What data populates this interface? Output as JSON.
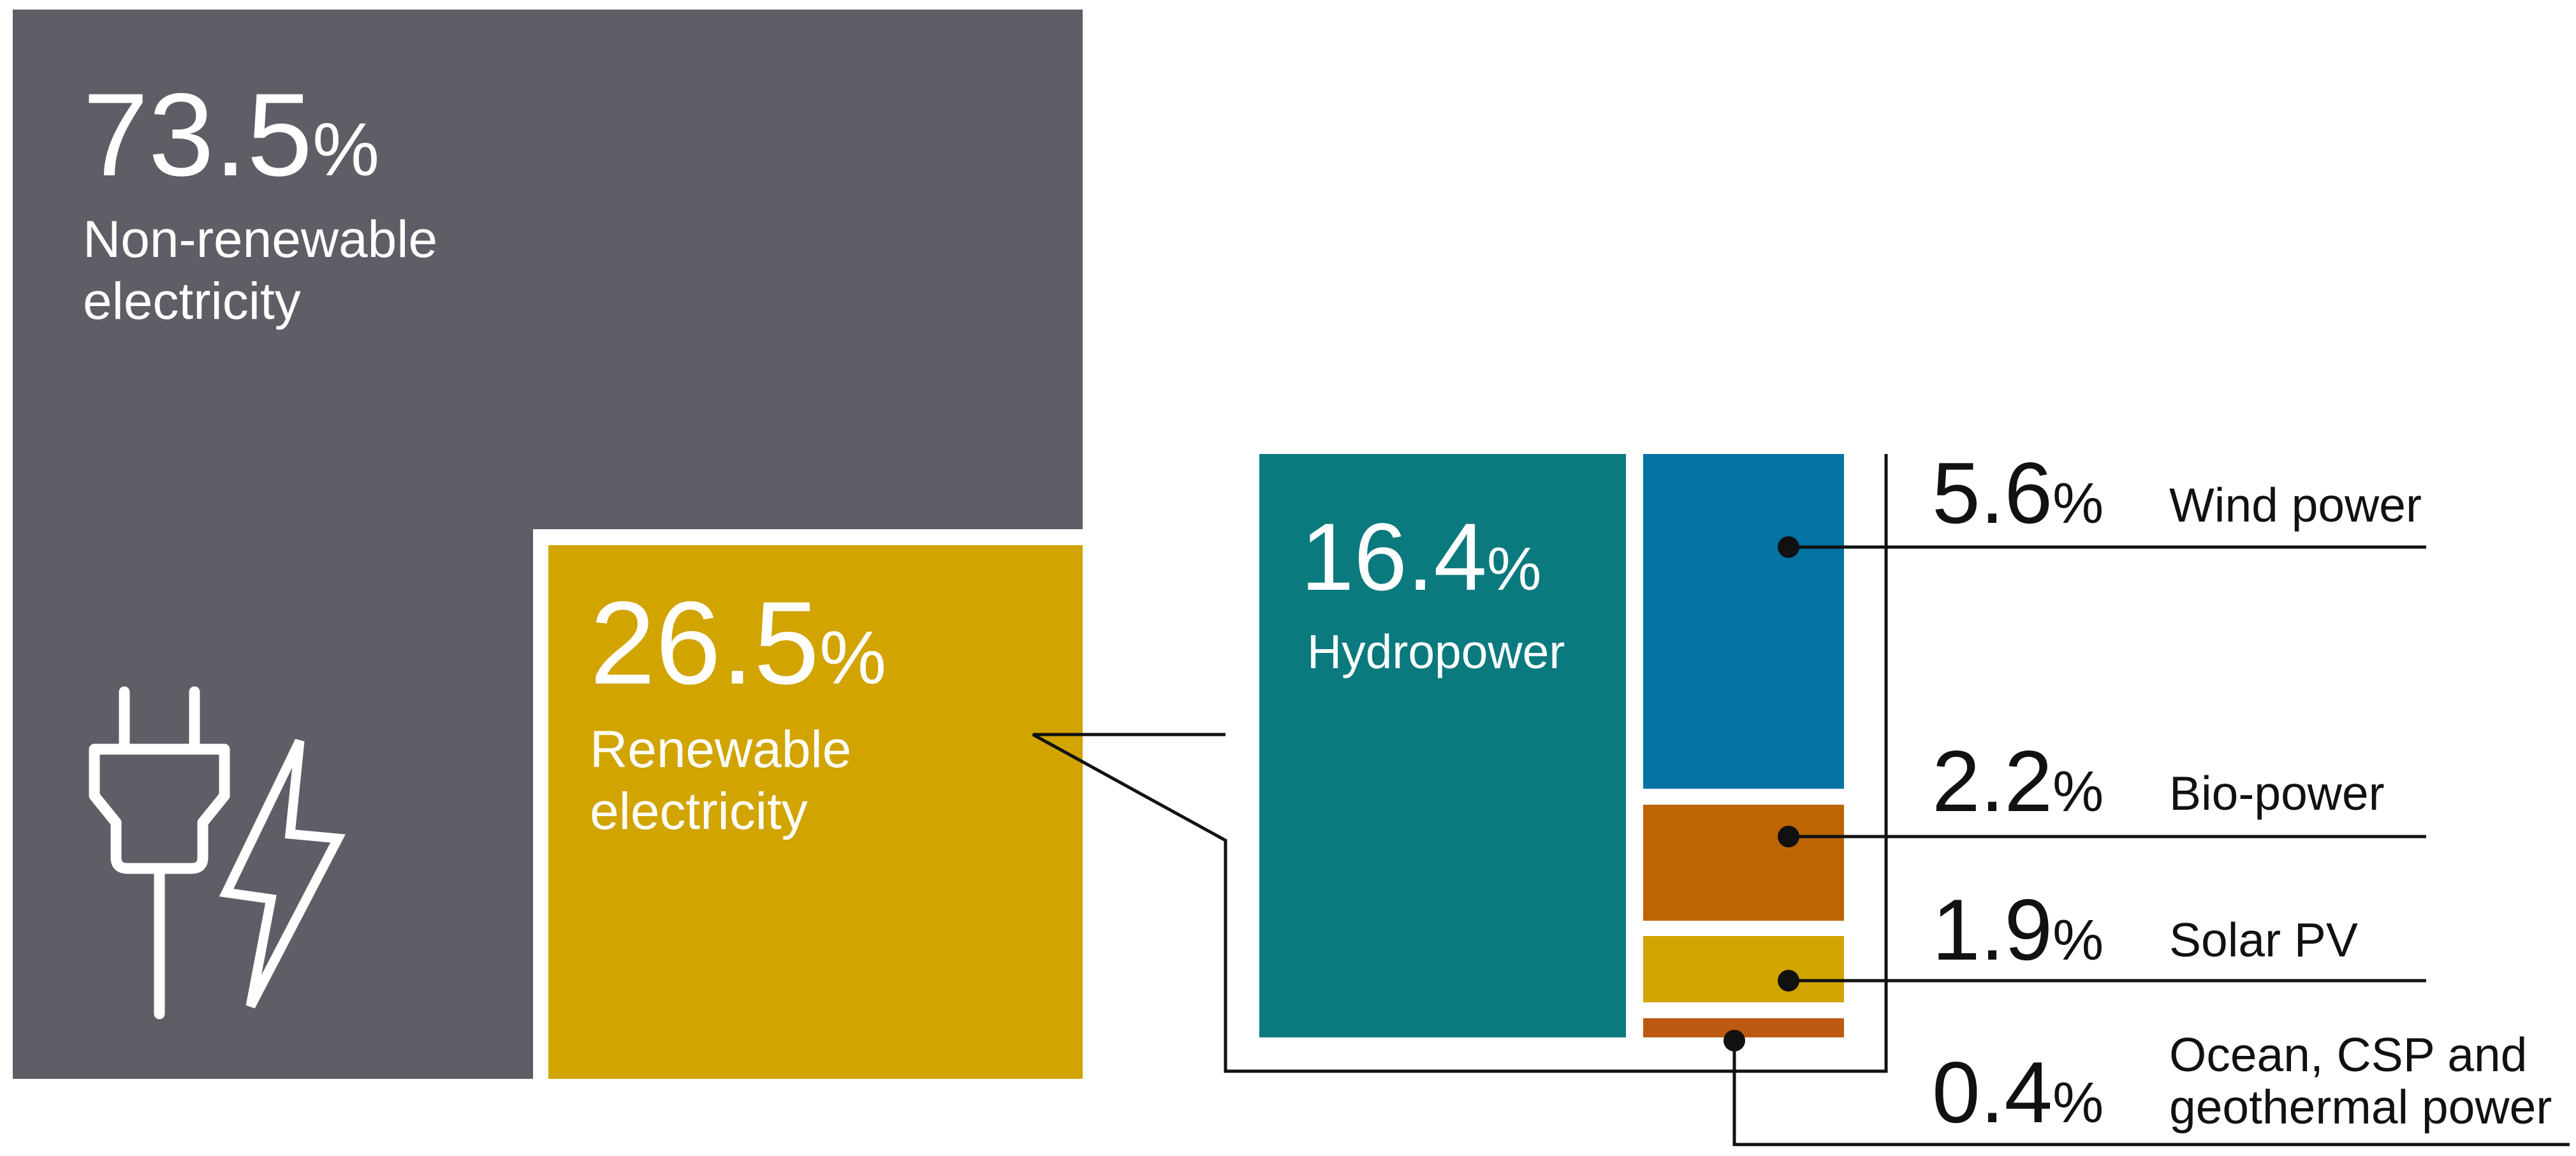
{
  "chart_data": {
    "type": "treemap",
    "title": "",
    "unit": "%",
    "colors": {
      "non_renewable": "#5f5e66",
      "renewable": "#d1a400",
      "hydropower": "#0b7a7e",
      "wind": "#0373a4",
      "bio": "#bd6505",
      "solar": "#d1a400",
      "ocean": "#bd5a12",
      "line": "#111111"
    },
    "main": [
      {
        "key": "non_renewable",
        "value": "73.5",
        "pct": "%",
        "label_line1": "Non-renewable",
        "label_line2": "electricity"
      },
      {
        "key": "renewable",
        "value": "26.5",
        "pct": "%",
        "label_line1": "Renewable",
        "label_line2": "electricity"
      }
    ],
    "hydro": {
      "value": "16.4",
      "pct": "%",
      "label": "Hydropower"
    },
    "breakdown": [
      {
        "key": "wind",
        "value": "5.6",
        "pct": "%",
        "label_line1": "Wind power",
        "label_line2": ""
      },
      {
        "key": "bio",
        "value": "2.2",
        "pct": "%",
        "label_line1": "Bio-power",
        "label_line2": ""
      },
      {
        "key": "solar",
        "value": "1.9",
        "pct": "%",
        "label_line1": "Solar PV",
        "label_line2": ""
      },
      {
        "key": "ocean",
        "value": "0.4",
        "pct": "%",
        "label_line1": "Ocean, CSP and",
        "label_line2": "geothermal power"
      }
    ],
    "icons": [
      "plug-icon",
      "lightning-bolt-icon"
    ]
  }
}
